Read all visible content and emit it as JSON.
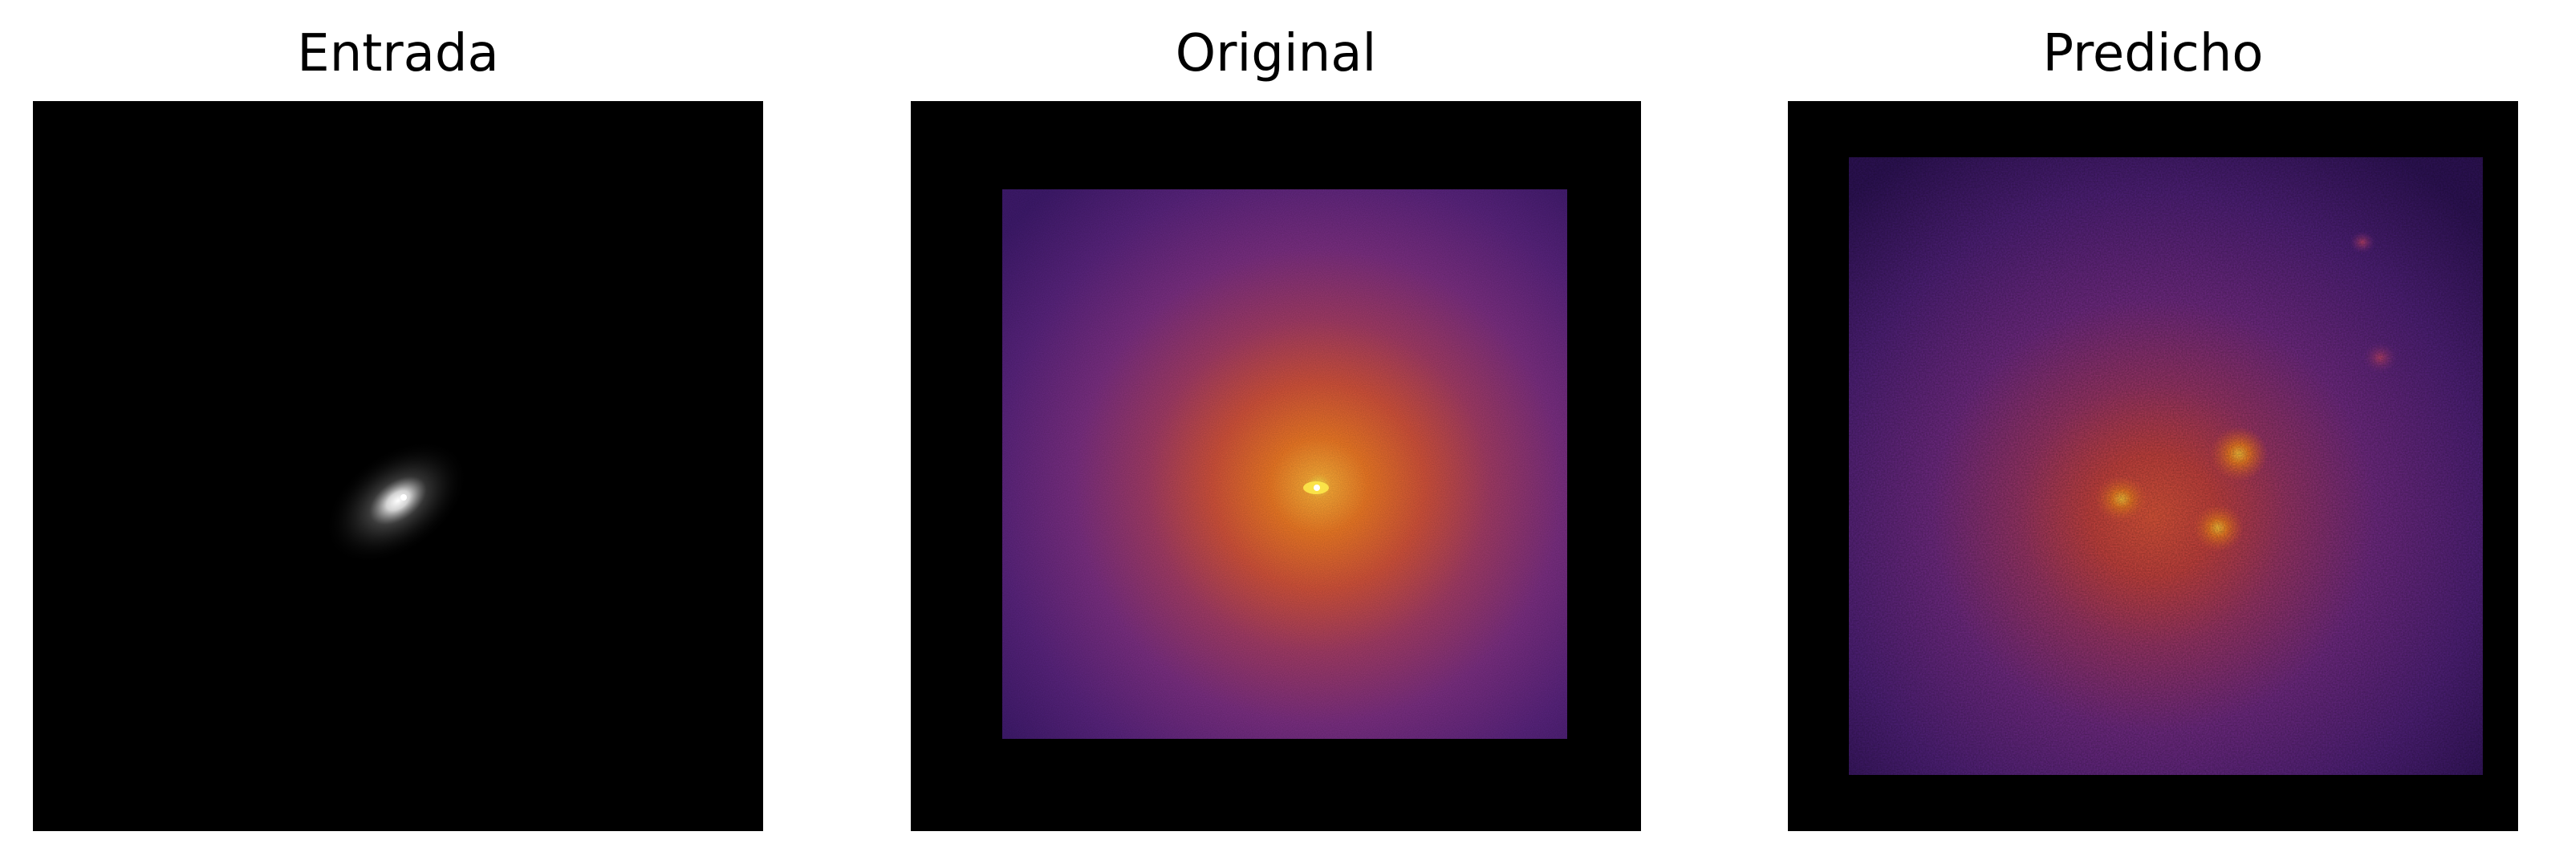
{
  "figure": {
    "panels": [
      {
        "title": "Entrada"
      },
      {
        "title": "Original"
      },
      {
        "title": "Predicho"
      }
    ]
  }
}
